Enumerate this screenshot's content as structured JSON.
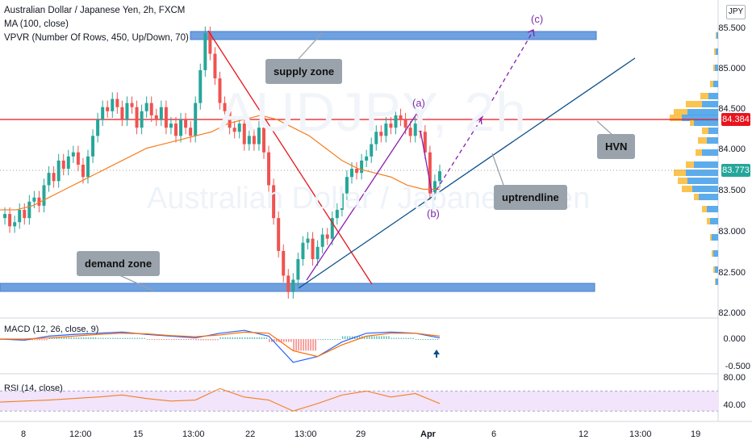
{
  "header": {
    "title": "Australian Dollar / Japanese Yen, 2h, FXCM",
    "ma": "MA (100, close)",
    "vpvr": "VPVR (Number Of Rows, 450, Up/Down, 70)"
  },
  "watermark": {
    "symbol": "AUDJPY, 2h",
    "name": "Australian Dollar / Japanese Yen"
  },
  "currency": "JPY",
  "annotations": {
    "supply_zone": "supply zone",
    "demand_zone": "demand zone",
    "hvn": "HVN",
    "uptrendline": "uptrendline",
    "wave_a": "(a)",
    "wave_b": "(b)",
    "wave_c": "(c)"
  },
  "price_tags": {
    "hvn_price": "84.384",
    "last_price": "83.773"
  },
  "colors": {
    "zone": "#6fa0e0",
    "red_line": "#e8141d",
    "uptrend": "#0b4f8a",
    "wave": "#8a1fb0",
    "ma": "#f57f20",
    "bull": "#26a69a",
    "bear": "#ef5350",
    "vp_up": "#f9be3e",
    "vp_down": "#4aa3ea",
    "macd": "#2962ff",
    "signal": "#ff6d00",
    "rsi": "#f57f20",
    "rsi_band": "#f1e4fb"
  },
  "chart_data": [
    {
      "type": "line",
      "title": "Australian Dollar / Japanese Yen, 2h, FXCM",
      "y_ticks": [
        "85.500",
        "85.000",
        "84.500",
        "84.000",
        "83.500",
        "83.000",
        "82.500",
        "82.000"
      ],
      "x_ticks": [
        "8",
        "12:00",
        "15",
        "13:00",
        "22",
        "13:00",
        "29",
        "Apr",
        "6",
        "12",
        "13:00",
        "19"
      ],
      "ylim": [
        82.0,
        85.65
      ],
      "series": [
        {
          "name": "AUDJPY close",
          "x": [
            0,
            6,
            12,
            18,
            24,
            30,
            36,
            42,
            48,
            54,
            60,
            66,
            72,
            78,
            84,
            90,
            96,
            102,
            108,
            114,
            120,
            126,
            132,
            138,
            144,
            150,
            156,
            162,
            168,
            174,
            180,
            186,
            192,
            198,
            204,
            210,
            216,
            222,
            228,
            234,
            240,
            246,
            252,
            258,
            264,
            270,
            276,
            282,
            288,
            294,
            300,
            306,
            312,
            318,
            324,
            330,
            336,
            342,
            348,
            354,
            360,
            366,
            372,
            378,
            384,
            390,
            396,
            402,
            408,
            414,
            420,
            426,
            432,
            438,
            444,
            450,
            456,
            462,
            468,
            474,
            480,
            486,
            492,
            498,
            504,
            510,
            516,
            522,
            528,
            534,
            540
          ],
          "values": [
            83.2,
            83.25,
            83.1,
            83.15,
            83.3,
            83.2,
            83.4,
            83.45,
            83.35,
            83.6,
            83.75,
            83.65,
            83.9,
            83.8,
            83.95,
            84.0,
            83.85,
            83.7,
            83.95,
            84.2,
            84.4,
            84.55,
            84.5,
            84.65,
            84.55,
            84.4,
            84.6,
            84.55,
            84.3,
            84.5,
            84.6,
            84.45,
            84.4,
            84.55,
            84.3,
            84.35,
            84.2,
            84.4,
            84.3,
            84.2,
            84.6,
            85.0,
            85.45,
            85.2,
            84.9,
            84.6,
            84.5,
            84.3,
            84.25,
            84.35,
            84.1,
            84.2,
            84.1,
            84.3,
            84.0,
            83.6,
            83.2,
            82.8,
            82.5,
            82.3,
            82.45,
            82.7,
            82.9,
            82.95,
            82.7,
            82.85,
            83.0,
            82.95,
            83.2,
            83.3,
            83.5,
            83.7,
            83.8,
            83.75,
            83.9,
            83.95,
            84.1,
            84.25,
            84.2,
            84.35,
            84.3,
            84.45,
            84.4,
            84.3,
            84.2,
            84.35,
            84.25,
            84.0,
            83.5,
            83.65,
            83.77
          ]
        },
        {
          "name": "MA (100, close)",
          "x": [
            0,
            20,
            40,
            60,
            80,
            100,
            120,
            140,
            160,
            180,
            200,
            220,
            240,
            260,
            280,
            300,
            320,
            340,
            360,
            380,
            400,
            420,
            440,
            460,
            480,
            500,
            520,
            540
          ],
          "values": [
            83.3,
            83.3,
            83.35,
            83.45,
            83.55,
            83.65,
            83.75,
            83.85,
            83.95,
            84.05,
            84.1,
            84.15,
            84.2,
            84.25,
            84.35,
            84.4,
            84.45,
            84.4,
            84.3,
            84.2,
            84.05,
            83.9,
            83.8,
            83.75,
            83.7,
            83.6,
            83.55,
            83.55
          ]
        }
      ]
    },
    {
      "type": "line",
      "title": "MACD (12, 26, close, 9)",
      "y_ticks": [
        "0.000",
        "-0.500"
      ],
      "series": [
        {
          "name": "MACD",
          "x": [
            0,
            30,
            60,
            90,
            120,
            150,
            180,
            210,
            240,
            270,
            300,
            330,
            360,
            390,
            420,
            450,
            480,
            510,
            540
          ],
          "values": [
            0.0,
            -0.02,
            0.05,
            0.08,
            0.1,
            0.12,
            0.08,
            0.05,
            0.02,
            0.1,
            0.15,
            0.05,
            -0.4,
            -0.3,
            -0.05,
            0.1,
            0.12,
            0.1,
            0.02
          ]
        },
        {
          "name": "Signal",
          "x": [
            0,
            30,
            60,
            90,
            120,
            150,
            180,
            210,
            240,
            270,
            300,
            330,
            360,
            390,
            420,
            450,
            480,
            510,
            540
          ],
          "values": [
            0.0,
            0.0,
            0.02,
            0.05,
            0.08,
            0.1,
            0.09,
            0.06,
            0.04,
            0.07,
            0.12,
            0.1,
            -0.2,
            -0.3,
            -0.1,
            0.05,
            0.1,
            0.1,
            0.05
          ]
        }
      ]
    },
    {
      "type": "line",
      "title": "RSI (14, close)",
      "y_ticks": [
        "80.00",
        "40.00"
      ],
      "series": [
        {
          "name": "RSI",
          "x": [
            0,
            30,
            60,
            90,
            120,
            150,
            180,
            210,
            240,
            270,
            300,
            330,
            360,
            390,
            420,
            450,
            480,
            510,
            540
          ],
          "values": [
            48,
            50,
            52,
            55,
            58,
            62,
            55,
            50,
            52,
            75,
            58,
            52,
            30,
            45,
            62,
            70,
            58,
            65,
            45
          ]
        }
      ]
    }
  ]
}
